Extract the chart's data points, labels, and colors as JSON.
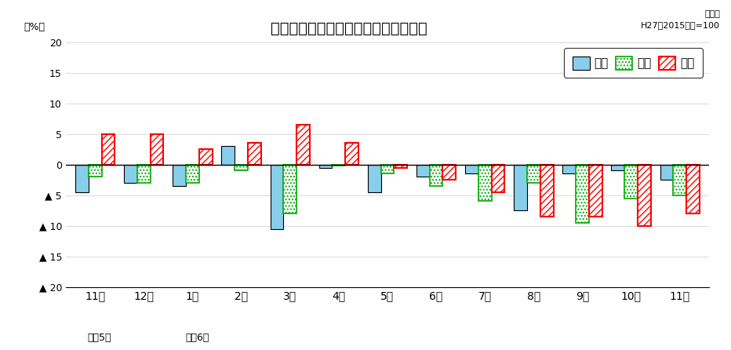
{
  "months": [
    "11月",
    "12月",
    "1月",
    "2月",
    "3月",
    "4月",
    "5月",
    "6月",
    "7月",
    "8月",
    "9月",
    "10月",
    "11月"
  ],
  "production": [
    -4.5,
    -3.0,
    -3.5,
    3.0,
    -10.5,
    -0.5,
    -4.5,
    -2.0,
    -1.5,
    -7.5,
    -1.5,
    -1.0,
    -2.5
  ],
  "shipment": [
    -2.0,
    -3.0,
    -3.0,
    -1.0,
    -8.0,
    -0.2,
    -1.5,
    -3.5,
    -6.0,
    -3.0,
    -9.5,
    -5.5,
    -5.0
  ],
  "inventory": [
    5.0,
    5.0,
    2.5,
    3.5,
    6.5,
    3.5,
    -0.5,
    -2.5,
    -4.5,
    -8.5,
    -8.5,
    -10.0,
    -8.0
  ],
  "title": "生産・出荷・在庫の前年同月比の推移",
  "ylabel": "（%）",
  "note": "原指数\nH27（2015）年=100",
  "ylim": [
    -20,
    20
  ],
  "yticks": [
    -20,
    -15,
    -10,
    -5,
    0,
    5,
    10,
    15,
    20
  ],
  "ytick_labels": [
    "▲ 20",
    "▲ 15",
    "▲ 10",
    "▲ 5",
    "0",
    "5",
    "10",
    "15",
    "20"
  ],
  "legend_labels": [
    "生産",
    "出荷",
    "在庫"
  ],
  "production_color": "#87CEEB",
  "production_edge": "#000000",
  "shipment_edge": "#00AA00",
  "inventory_edge": "#FF0000",
  "bar_width": 0.27,
  "year_label_0": "令和5年",
  "year_label_2": "令和6年"
}
